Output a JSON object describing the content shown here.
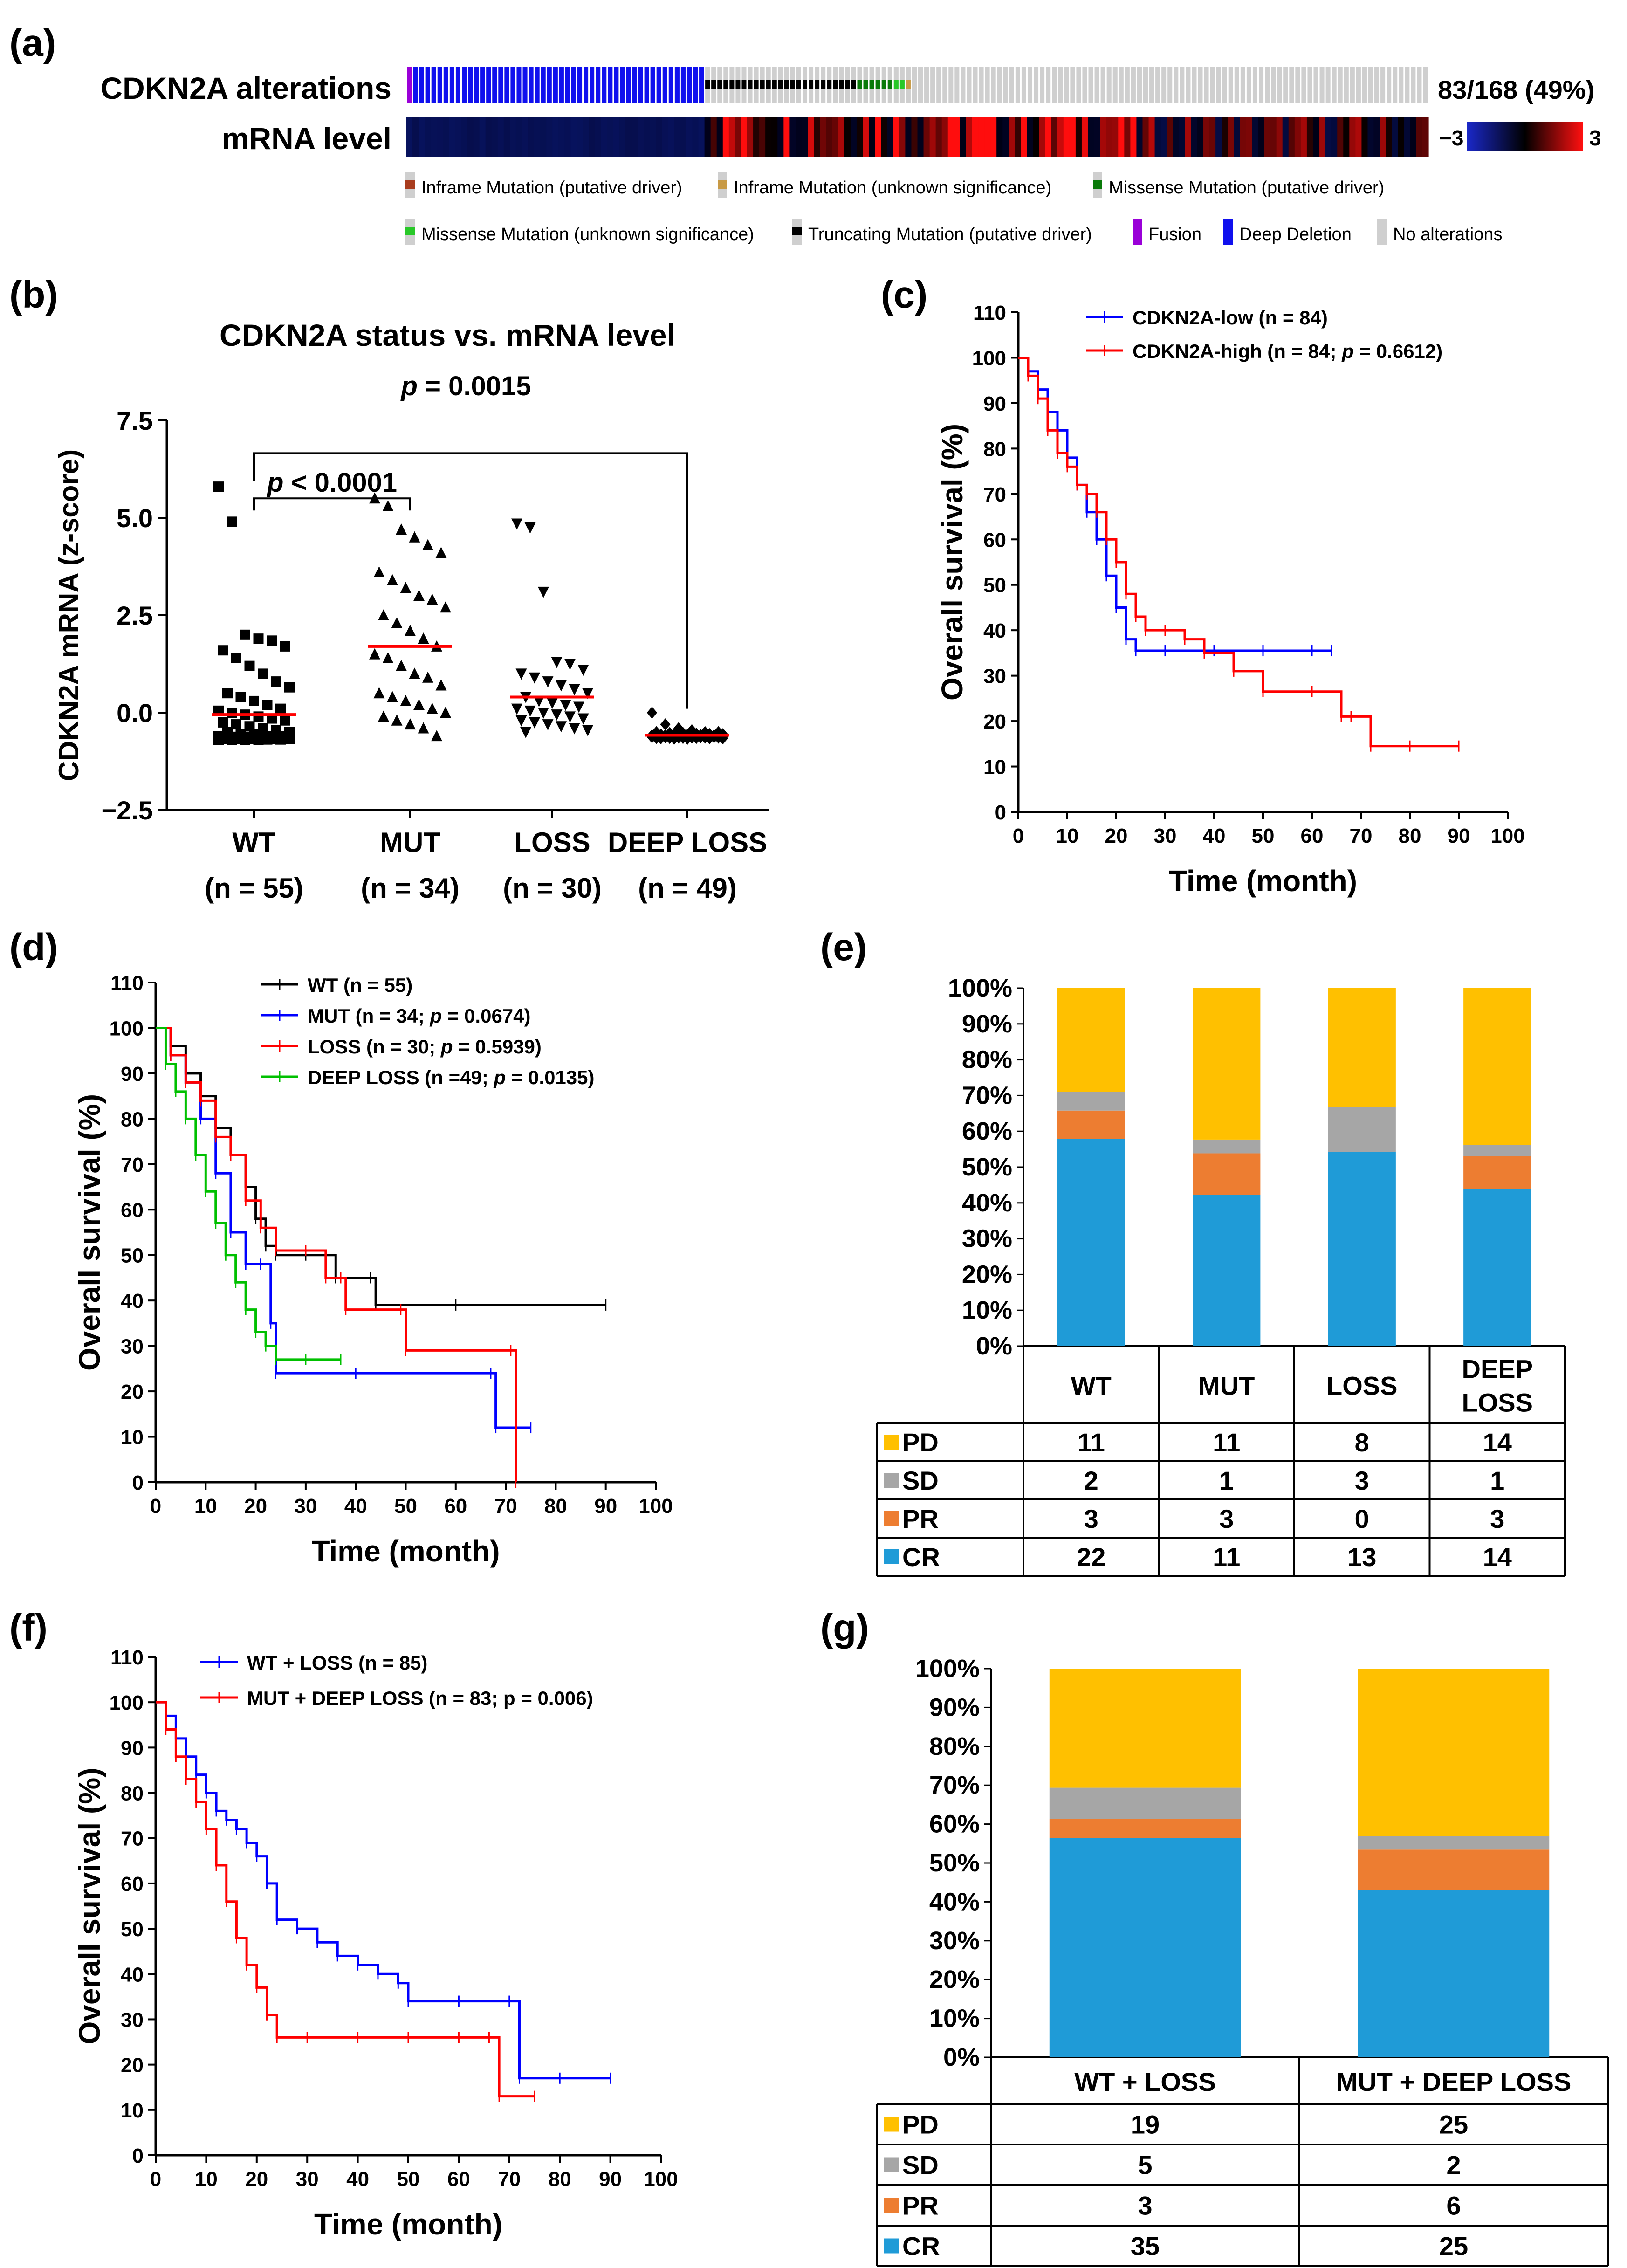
{
  "colors": {
    "black": "#000000",
    "red": "#ff0000",
    "blue": "#0000ff",
    "green": "#00c000",
    "navy": "#0a1450",
    "deep_deletion": "#1010ee",
    "fusion": "#9a00d8",
    "no_alt": "#cfcfcf",
    "pd": "#ffc000",
    "sd": "#a6a6a6",
    "pr": "#ed7d31",
    "cr": "#1f9bd7",
    "inframe_driver": "#a83c1e",
    "inframe_unknown": "#c89a46",
    "missense_driver": "#0a7a0a",
    "missense_unknown": "#28c828"
  },
  "panels": {
    "a": {
      "label": "(a)",
      "row1_label": "CDKN2A alterations",
      "row2_label": "mRNA level",
      "frequency": "83/168 (49%)",
      "scale_min": "−3",
      "scale_max": "3",
      "legend": [
        {
          "text": "Inframe Mutation (putative driver)",
          "color": "#a83c1e"
        },
        {
          "text": "Inframe Mutation (unknown significance)",
          "color": "#c89a46"
        },
        {
          "text": "Missense Mutation (putative driver)",
          "color": "#0a7a0a"
        },
        {
          "text": "Missense Mutation (unknown significance)",
          "color": "#28c828"
        },
        {
          "text": "Truncating Mutation (putative driver)",
          "color": "#000000"
        },
        {
          "text": "Fusion",
          "color": "#9a00d8"
        },
        {
          "text": "Deep Deletion",
          "color": "#1010ee"
        },
        {
          "text": "No alterations",
          "color": "#cfcfcf"
        }
      ],
      "track": {
        "n_samples": 168,
        "deep_deletion": 49,
        "truncating": 25,
        "missense_driver": 6,
        "missense_unknown": 2,
        "inframe_unknown": 1
      }
    },
    "b": {
      "label": "(b)"
    },
    "c": {
      "label": "(c)"
    },
    "d": {
      "label": "(d)"
    },
    "e": {
      "label": "(e)"
    },
    "f": {
      "label": "(f)"
    },
    "g": {
      "label": "(g)"
    }
  },
  "chart_data": [
    {
      "id": "b",
      "type": "scatter",
      "title": "CDKN2A status vs. mRNA level",
      "ylabel": "CDKN2A mRNA (z-score)",
      "ylim": [
        -2.5,
        7.5
      ],
      "yticks": [
        "7.5",
        "5.0",
        "2.5",
        "0.0",
        "−2.5"
      ],
      "yticks_values": [
        7.5,
        5.0,
        2.5,
        0.0,
        -2.5
      ],
      "categories": [
        "WT",
        "MUT",
        "LOSS",
        "DEEP LOSS"
      ],
      "category_n": [
        "(n = 55)",
        "(n = 34)",
        "(n = 30)",
        "(n = 49)"
      ],
      "markers": [
        "square",
        "triangle",
        "triangle-down",
        "diamond"
      ],
      "means": [
        -0.05,
        1.7,
        0.4,
        -0.58
      ],
      "groups": [
        [
          5.8,
          4.9,
          2.0,
          1.9,
          1.85,
          1.7,
          1.6,
          1.4,
          1.2,
          1.0,
          0.8,
          0.65,
          0.5,
          0.4,
          0.3,
          0.2,
          0.1,
          0.05,
          0.0,
          -0.05,
          -0.1,
          -0.15,
          -0.2,
          -0.25,
          -0.3,
          -0.35,
          -0.4,
          -0.45,
          -0.5,
          -0.5,
          -0.55,
          -0.55,
          -0.6,
          -0.6,
          -0.6,
          -0.62,
          -0.62,
          -0.63,
          -0.63,
          -0.65,
          -0.65,
          -0.65,
          -0.66,
          -0.66,
          -0.67,
          -0.67,
          -0.68,
          -0.68,
          -0.68,
          -0.69,
          -0.69,
          -0.7,
          -0.7,
          -0.7,
          -0.7
        ],
        [
          5.5,
          5.3,
          4.7,
          4.5,
          4.3,
          4.1,
          3.6,
          3.4,
          3.2,
          3.0,
          2.9,
          2.7,
          2.5,
          2.3,
          2.1,
          1.9,
          1.7,
          1.5,
          1.4,
          1.2,
          1.0,
          0.9,
          0.7,
          0.5,
          0.4,
          0.3,
          0.2,
          0.1,
          0.0,
          -0.1,
          -0.2,
          -0.3,
          -0.4,
          -0.6
        ],
        [
          4.85,
          4.75,
          3.1,
          1.3,
          1.25,
          1.1,
          1.0,
          0.9,
          0.8,
          0.7,
          0.6,
          0.5,
          0.4,
          0.3,
          0.25,
          0.2,
          0.15,
          0.1,
          0.05,
          0.0,
          -0.05,
          -0.1,
          -0.15,
          -0.2,
          -0.25,
          -0.3,
          -0.35,
          -0.4,
          -0.45,
          -0.5
        ],
        [
          0.0,
          -0.3,
          -0.4,
          -0.45,
          -0.5,
          -0.5,
          -0.5,
          -0.52,
          -0.52,
          -0.54,
          -0.55,
          -0.55,
          -0.56,
          -0.56,
          -0.57,
          -0.57,
          -0.58,
          -0.58,
          -0.58,
          -0.59,
          -0.59,
          -0.6,
          -0.6,
          -0.6,
          -0.6,
          -0.61,
          -0.61,
          -0.61,
          -0.62,
          -0.62,
          -0.62,
          -0.62,
          -0.63,
          -0.63,
          -0.63,
          -0.63,
          -0.64,
          -0.64,
          -0.64,
          -0.64,
          -0.65,
          -0.65,
          -0.65,
          -0.65,
          -0.66,
          -0.66,
          -0.66,
          -0.67,
          -0.67
        ]
      ],
      "annotations": [
        {
          "text_italic": "p",
          "text": " < 0.0001",
          "from": "WT",
          "to": "MUT",
          "y": 5.5
        },
        {
          "text_italic": "p",
          "text": " = 0.0015",
          "from": "WT",
          "to": "DEEP LOSS",
          "y": 6.3
        }
      ]
    },
    {
      "id": "c",
      "type": "line",
      "xlabel": "Time (month)",
      "ylabel": "Overall survival (%)",
      "xlim": [
        0,
        100
      ],
      "ylim": [
        0,
        110
      ],
      "xticks": [
        "0",
        "10",
        "20",
        "30",
        "40",
        "50",
        "60",
        "70",
        "80",
        "90",
        "100"
      ],
      "yticks": [
        "0",
        "10",
        "20",
        "30",
        "40",
        "50",
        "60",
        "70",
        "80",
        "90",
        "100",
        "110"
      ],
      "series": [
        {
          "name": "CDKN2A-low (n = 84)",
          "color": "#0000ff",
          "x": [
            0,
            2,
            4,
            6,
            8,
            10,
            12,
            14,
            16,
            18,
            20,
            22,
            24,
            30,
            40,
            50,
            60,
            64
          ],
          "y": [
            100,
            97,
            93,
            88,
            84,
            78,
            72,
            66,
            60,
            52,
            45,
            38,
            35.5,
            35.5,
            35.5,
            35.5,
            35.5,
            35.5
          ]
        },
        {
          "name_pre": "CDKN2A-high (n = 84; ",
          "name_italic": "p",
          "name_post": " = 0.6612)",
          "color": "#ff0000",
          "x": [
            0,
            2,
            4,
            6,
            8,
            10,
            12,
            14,
            16,
            18,
            20,
            22,
            24,
            26,
            30,
            34,
            38,
            44,
            50,
            60,
            66,
            68,
            72,
            80,
            90
          ],
          "y": [
            100,
            96,
            91,
            84,
            79,
            76,
            72,
            70,
            66,
            60,
            55,
            48,
            43,
            40,
            40,
            38,
            35,
            31,
            26.5,
            26.5,
            21,
            21,
            14.5,
            14.5,
            14.5
          ]
        }
      ]
    },
    {
      "id": "d",
      "type": "line",
      "xlabel": "Time (month)",
      "ylabel": "Overall survival (%)",
      "xlim": [
        0,
        100
      ],
      "ylim": [
        0,
        110
      ],
      "xticks": [
        "0",
        "10",
        "20",
        "30",
        "40",
        "50",
        "60",
        "70",
        "80",
        "90",
        "100"
      ],
      "yticks": [
        "0",
        "10",
        "20",
        "30",
        "40",
        "50",
        "60",
        "70",
        "80",
        "90",
        "100",
        "110"
      ],
      "series": [
        {
          "name": "WT (n = 55)",
          "color": "#000000",
          "x": [
            0,
            3,
            6,
            9,
            12,
            15,
            18,
            20,
            22,
            24,
            30,
            36,
            43,
            44,
            60,
            90
          ],
          "y": [
            100,
            96,
            90,
            85,
            78,
            72,
            65,
            58,
            52,
            50,
            50,
            45,
            45,
            39,
            39,
            39
          ]
        },
        {
          "name_pre": "MUT (n = 34; ",
          "name_italic": "p",
          "name_post": " = 0.0674)",
          "color": "#0000ff",
          "x": [
            0,
            3,
            6,
            9,
            12,
            15,
            18,
            21,
            23,
            24,
            40,
            67,
            68,
            75
          ],
          "y": [
            100,
            94,
            88,
            80,
            68,
            55,
            48,
            48,
            35,
            24,
            24,
            24,
            12,
            12
          ]
        },
        {
          "name_pre": "LOSS (n = 30; ",
          "name_italic": "p",
          "name_post": " = 0.5939)",
          "color": "#ff0000",
          "x": [
            0,
            3,
            6,
            9,
            12,
            15,
            18,
            21,
            24,
            30,
            34,
            37,
            38,
            49,
            50,
            71,
            72
          ],
          "y": [
            100,
            94,
            88,
            84,
            76,
            72,
            62,
            56,
            51,
            51,
            45,
            45,
            38,
            38,
            29,
            29,
            0
          ]
        },
        {
          "name_pre": "DEEP LOSS (n =49; ",
          "name_italic": "p",
          "name_post": " = 0.0135)",
          "color": "#00c000",
          "x": [
            0,
            2,
            4,
            6,
            8,
            10,
            12,
            14,
            16,
            18,
            20,
            22,
            24,
            30,
            37
          ],
          "y": [
            100,
            92,
            86,
            80,
            72,
            64,
            57,
            50,
            44,
            38,
            33,
            30,
            27,
            27,
            27
          ]
        }
      ]
    },
    {
      "id": "e",
      "type": "bar",
      "yticks": [
        "0%",
        "10%",
        "20%",
        "30%",
        "40%",
        "50%",
        "60%",
        "70%",
        "80%",
        "90%",
        "100%"
      ],
      "categories": [
        "WT",
        "MUT",
        "LOSS",
        "DEEP LOSS"
      ],
      "category_lines": [
        [
          "WT"
        ],
        [
          "MUT"
        ],
        [
          "LOSS"
        ],
        [
          "DEEP",
          "LOSS"
        ]
      ],
      "series": [
        {
          "name": "CR",
          "color": "#1f9bd7",
          "values": [
            22,
            11,
            13,
            14
          ]
        },
        {
          "name": "PR",
          "color": "#ed7d31",
          "values": [
            3,
            3,
            0,
            3
          ]
        },
        {
          "name": "SD",
          "color": "#a6a6a6",
          "values": [
            2,
            1,
            3,
            1
          ]
        },
        {
          "name": "PD",
          "color": "#ffc000",
          "values": [
            11,
            11,
            8,
            14
          ]
        }
      ],
      "table_order": [
        "PD",
        "SD",
        "PR",
        "CR"
      ]
    },
    {
      "id": "f",
      "type": "line",
      "xlabel": "Time (month)",
      "ylabel": "Overall survival (%)",
      "xlim": [
        0,
        100
      ],
      "ylim": [
        0,
        110
      ],
      "xticks": [
        "0",
        "10",
        "20",
        "30",
        "40",
        "50",
        "60",
        "70",
        "80",
        "90",
        "100"
      ],
      "yticks": [
        "0",
        "10",
        "20",
        "30",
        "40",
        "50",
        "60",
        "70",
        "80",
        "90",
        "100",
        "110"
      ],
      "series": [
        {
          "name": "WT + LOSS (n = 85)",
          "color": "#0000ff",
          "x": [
            0,
            2,
            4,
            6,
            8,
            10,
            12,
            14,
            16,
            18,
            20,
            22,
            24,
            28,
            32,
            36,
            40,
            44,
            48,
            50,
            60,
            70,
            72,
            80,
            90
          ],
          "y": [
            100,
            97,
            92,
            88,
            84,
            80,
            76,
            74,
            72,
            69,
            66,
            60,
            52,
            50,
            47,
            44,
            42,
            40,
            38,
            34,
            34,
            34,
            17,
            17,
            17
          ]
        },
        {
          "name": "MUT + DEEP LOSS (n = 83; p = 0.006)",
          "color": "#ff0000",
          "x": [
            0,
            2,
            4,
            6,
            8,
            10,
            12,
            14,
            16,
            18,
            20,
            22,
            24,
            30,
            40,
            50,
            60,
            66,
            68,
            75
          ],
          "y": [
            100,
            94,
            88,
            83,
            78,
            72,
            64,
            56,
            48,
            42,
            37,
            31,
            26,
            26,
            26,
            26,
            26,
            26,
            13,
            13
          ]
        }
      ]
    },
    {
      "id": "g",
      "type": "bar",
      "yticks": [
        "0%",
        "10%",
        "20%",
        "30%",
        "40%",
        "50%",
        "60%",
        "70%",
        "80%",
        "90%",
        "100%"
      ],
      "categories": [
        "WT + LOSS",
        "MUT + DEEP LOSS"
      ],
      "category_lines": [
        [
          "WT + LOSS"
        ],
        [
          "MUT + DEEP LOSS"
        ]
      ],
      "series": [
        {
          "name": "CR",
          "color": "#1f9bd7",
          "values": [
            35,
            25
          ]
        },
        {
          "name": "PR",
          "color": "#ed7d31",
          "values": [
            3,
            6
          ]
        },
        {
          "name": "SD",
          "color": "#a6a6a6",
          "values": [
            5,
            2
          ]
        },
        {
          "name": "PD",
          "color": "#ffc000",
          "values": [
            19,
            25
          ]
        }
      ],
      "table_order": [
        "PD",
        "SD",
        "PR",
        "CR"
      ]
    }
  ]
}
